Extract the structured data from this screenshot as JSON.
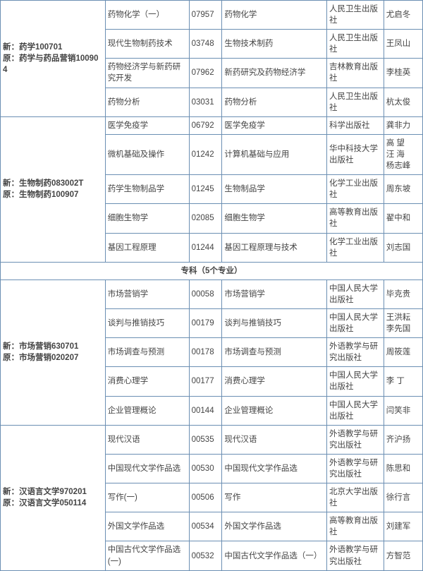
{
  "groups": [
    {
      "label_lines": [
        "新：药学100701",
        "原：药学与药品营销100904"
      ],
      "label_bold": true,
      "rows": [
        {
          "c2": "药物化学（一）",
          "c3": "07957",
          "c4": "药物化学",
          "c5": "人民卫生出版社",
          "c6": "尤启冬"
        },
        {
          "c2": "现代生物制药技术",
          "c3": "03748",
          "c4": "生物技术制药",
          "c5": "人民卫生出版社",
          "c6": "王凤山"
        },
        {
          "c2": "药物经济学与新药研究开发",
          "c3": "07962",
          "c4": "新药研究及药物经济学",
          "c5": "吉林教育出版社",
          "c6": "李桂英"
        },
        {
          "c2": "药物分析",
          "c3": "03031",
          "c4": "药物分析",
          "c5": "人民卫生出版社",
          "c6": "杭太俊"
        }
      ]
    },
    {
      "label_lines": [
        "新：生物制药083002T",
        "原：生物制药100907"
      ],
      "label_bold": true,
      "rows": [
        {
          "c2": "医学免疫学",
          "c3": "06792",
          "c4": "医学免疫学",
          "c5": "科学出版社",
          "c6": "龚非力"
        },
        {
          "c2": "微机基础及操作",
          "c3": "01242",
          "c4": "计算机基础与应用",
          "c5": "华中科技大学出版社",
          "c6": "高 望\n汪 海\n杨志峰"
        },
        {
          "c2": "药学生物制品学",
          "c3": "01245",
          "c4": "生物制品学",
          "c5": "化学工业出版社",
          "c6": "周东坡"
        },
        {
          "c2": "细胞生物学",
          "c3": "02085",
          "c4": "细胞生物学",
          "c5": "高等教育出版社",
          "c6": "翟中和"
        },
        {
          "c2": "基因工程原理",
          "c3": "01244",
          "c4": "基因工程原理与技术",
          "c5": "化学工业出版社",
          "c6": "刘志国"
        }
      ]
    }
  ],
  "section_header": "专科（5个专业）",
  "groups2": [
    {
      "label_lines": [
        "新：市场营销630701",
        "原：市场营销020207"
      ],
      "label_bold": true,
      "rows": [
        {
          "c2": "市场营销学",
          "c3": "00058",
          "c4": "市场营销学",
          "c5": "中国人民大学出版社",
          "c6": "毕克贵"
        },
        {
          "c2": "谈判与推销技巧",
          "c3": "00179",
          "c4": "谈判与推销技巧",
          "c5": "中国人民大学出版社",
          "c6": "王洪耘\n李先国"
        },
        {
          "c2": "市场调查与预测",
          "c3": "00178",
          "c4": "市场调查与预测",
          "c5": "外语教学与研究出版社",
          "c6": "周筱莲"
        },
        {
          "c2": "消费心理学",
          "c3": "00177",
          "c4": "消费心理学",
          "c5": "中国人民大学出版社",
          "c6": "李 丁"
        },
        {
          "c2": "企业管理概论",
          "c3": "00144",
          "c4": "企业管理概论",
          "c5": "中国人民大学出版社",
          "c6": "闫笑非"
        }
      ]
    },
    {
      "label_lines": [
        "新：汉语言文学970201",
        "原：汉语言文学050114"
      ],
      "label_bold": true,
      "rows": [
        {
          "c2": "现代汉语",
          "c3": "00535",
          "c4": "现代汉语",
          "c5": "外语教学与研究出版社",
          "c6": "齐沪扬"
        },
        {
          "c2": "中国现代文学作品选",
          "c3": "00530",
          "c4": "中国现代文学作品选",
          "c5": "外语教学与研究出版社",
          "c6": "陈思和"
        },
        {
          "c2": "写作(一)",
          "c3": "00506",
          "c4": "写作",
          "c5": "北京大学出版社",
          "c6": "徐行言"
        },
        {
          "c2": "外国文学作品选",
          "c3": "00534",
          "c4": "外国文学作品选",
          "c5": "高等教育出版社",
          "c6": "刘建军"
        },
        {
          "c2": "中国古代文学作品选(一)",
          "c3": "00532",
          "c4": "中国古代文学作品选（一）",
          "c5": "外语教学与研究出版社",
          "c6": "方智范"
        }
      ]
    }
  ]
}
